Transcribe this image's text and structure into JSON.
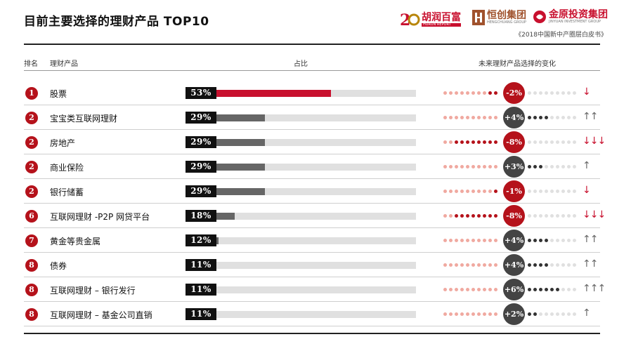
{
  "title": "目前主要选择的理财产品 TOP10",
  "logos": {
    "hurun": "胡润百富",
    "hurun_sub": "HURUN REPORT",
    "hengchuang": "恒创集团",
    "hengchuang_sub": "HENGCHUANG GROUP",
    "jinyuan": "金原投资集团",
    "jinyuan_sub": "JINYUAN INVESTMENT GROUP",
    "caption": "《2018中国新中产圈层白皮书》"
  },
  "headers": {
    "rank": "排名",
    "product": "理财产品",
    "share": "占比",
    "change": "未来理财产品选择的变化"
  },
  "colors": {
    "accent_red": "#c8102e",
    "rank_red": "#b5121b",
    "bar_gray": "#666666",
    "up_dark": "#444444"
  },
  "chart_data": {
    "type": "bar",
    "title": "目前主要选择的理财产品 TOP10",
    "ylim": [
      0,
      100
    ],
    "rows": [
      {
        "rank": "1",
        "product": "股票",
        "share": 53,
        "share_label": "53%",
        "change": -2,
        "change_label": "-2%",
        "arrow": "↓"
      },
      {
        "rank": "2",
        "product": "宝宝类互联网理财",
        "share": 29,
        "share_label": "29%",
        "change": 4,
        "change_label": "+4%",
        "arrow": "↑↑"
      },
      {
        "rank": "2",
        "product": "房地产",
        "share": 29,
        "share_label": "29%",
        "change": -8,
        "change_label": "-8%",
        "arrow": "↓↓↓"
      },
      {
        "rank": "2",
        "product": "商业保险",
        "share": 29,
        "share_label": "29%",
        "change": 3,
        "change_label": "+3%",
        "arrow": "↑"
      },
      {
        "rank": "2",
        "product": "银行储蓄",
        "share": 29,
        "share_label": "29%",
        "change": -1,
        "change_label": "-1%",
        "arrow": "↓"
      },
      {
        "rank": "6",
        "product": "互联网理财 -P2P 网贷平台",
        "share": 18,
        "share_label": "18%",
        "change": -8,
        "change_label": "-8%",
        "arrow": "↓↓↓"
      },
      {
        "rank": "7",
        "product": "黄金等贵金属",
        "share": 12,
        "share_label": "12%",
        "change": 4,
        "change_label": "+4%",
        "arrow": "↑↑"
      },
      {
        "rank": "8",
        "product": "债券",
        "share": 11,
        "share_label": "11%",
        "change": 4,
        "change_label": "+4%",
        "arrow": "↑↑"
      },
      {
        "rank": "8",
        "product": "互联网理财 – 银行发行",
        "share": 11,
        "share_label": "11%",
        "change": 6,
        "change_label": "+6%",
        "arrow": "↑↑↑"
      },
      {
        "rank": "8",
        "product": "互联网理财 – 基金公司直销",
        "share": 11,
        "share_label": "11%",
        "change": 2,
        "change_label": "+2%",
        "arrow": "↑"
      }
    ]
  }
}
